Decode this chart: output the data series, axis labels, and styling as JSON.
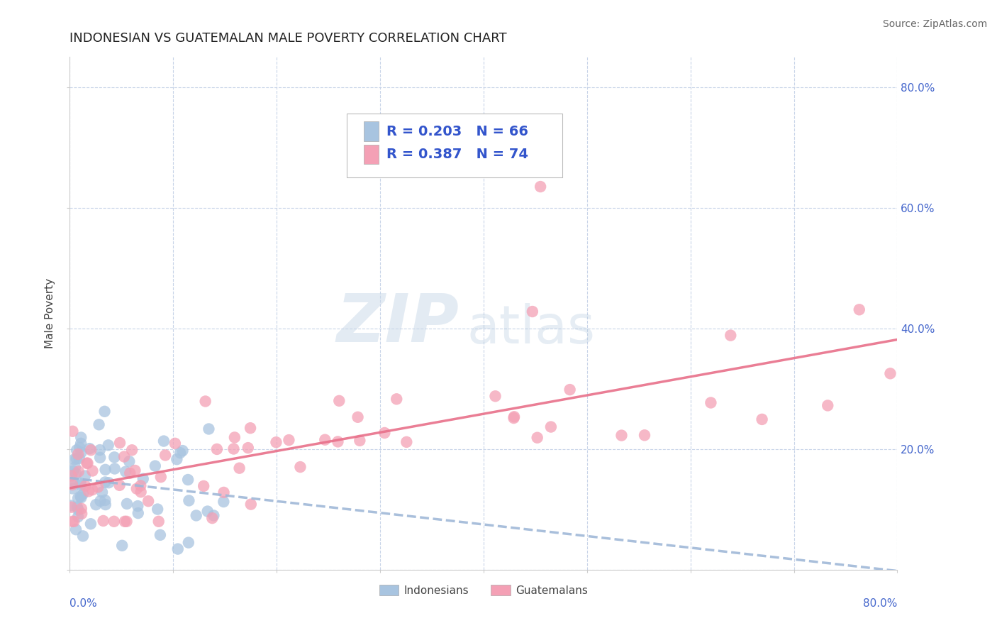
{
  "title": "INDONESIAN VS GUATEMALAN MALE POVERTY CORRELATION CHART",
  "source": "Source: ZipAtlas.com",
  "ylabel": "Male Poverty",
  "legend1_r": "0.203",
  "legend1_n": "66",
  "legend2_r": "0.387",
  "legend2_n": "74",
  "legend1_label": "Indonesians",
  "legend2_label": "Guatemalans",
  "indonesian_color": "#a8c4e0",
  "guatemalan_color": "#f4a0b5",
  "trend_indonesian_color": "#a0b8d8",
  "trend_guatemalan_color": "#e8708a",
  "background_color": "#ffffff",
  "grid_color": "#c8d4e8",
  "xlim": [
    0.0,
    0.8
  ],
  "ylim": [
    0.0,
    0.85
  ],
  "yticks": [
    0.0,
    0.2,
    0.4,
    0.6,
    0.8
  ],
  "ytick_labels": [
    "",
    "20.0%",
    "40.0%",
    "60.0%",
    "80.0%"
  ],
  "title_fontsize": 13,
  "source_fontsize": 10,
  "tick_fontsize": 11,
  "ylabel_fontsize": 11,
  "legend_fontsize": 14
}
